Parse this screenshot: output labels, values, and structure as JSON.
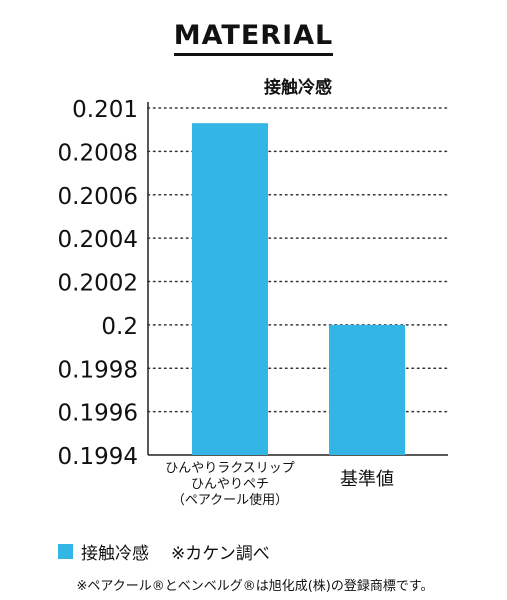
{
  "heading": "MATERIAL",
  "colors": {
    "bar": "#33b5e5",
    "text": "#111111",
    "grid": "#333333"
  },
  "chart_data": {
    "type": "bar",
    "title": "接触冷感",
    "categories": [
      [
        "ひんやりラクスリップ",
        "ひんやりペチ",
        "（ペアクール使用）"
      ],
      [
        "基準値"
      ]
    ],
    "series": [
      {
        "name": "接触冷感",
        "values": [
          0.20093,
          0.2
        ]
      }
    ],
    "ylim": [
      0.1994,
      0.201
    ],
    "yticks": [
      "0.201",
      "0.2008",
      "0.2006",
      "0.2004",
      "0.2002",
      "0.2",
      "0.1998",
      "0.1996",
      "0.1994"
    ],
    "grid": true,
    "legend": "bottom-left",
    "xlabel": "",
    "ylabel": ""
  },
  "legend": {
    "label": "接触冷感",
    "note": "※カケン調べ"
  },
  "footnote": "※ペアクール®とベンベルグ®は旭化成(株)の登録商標です。"
}
